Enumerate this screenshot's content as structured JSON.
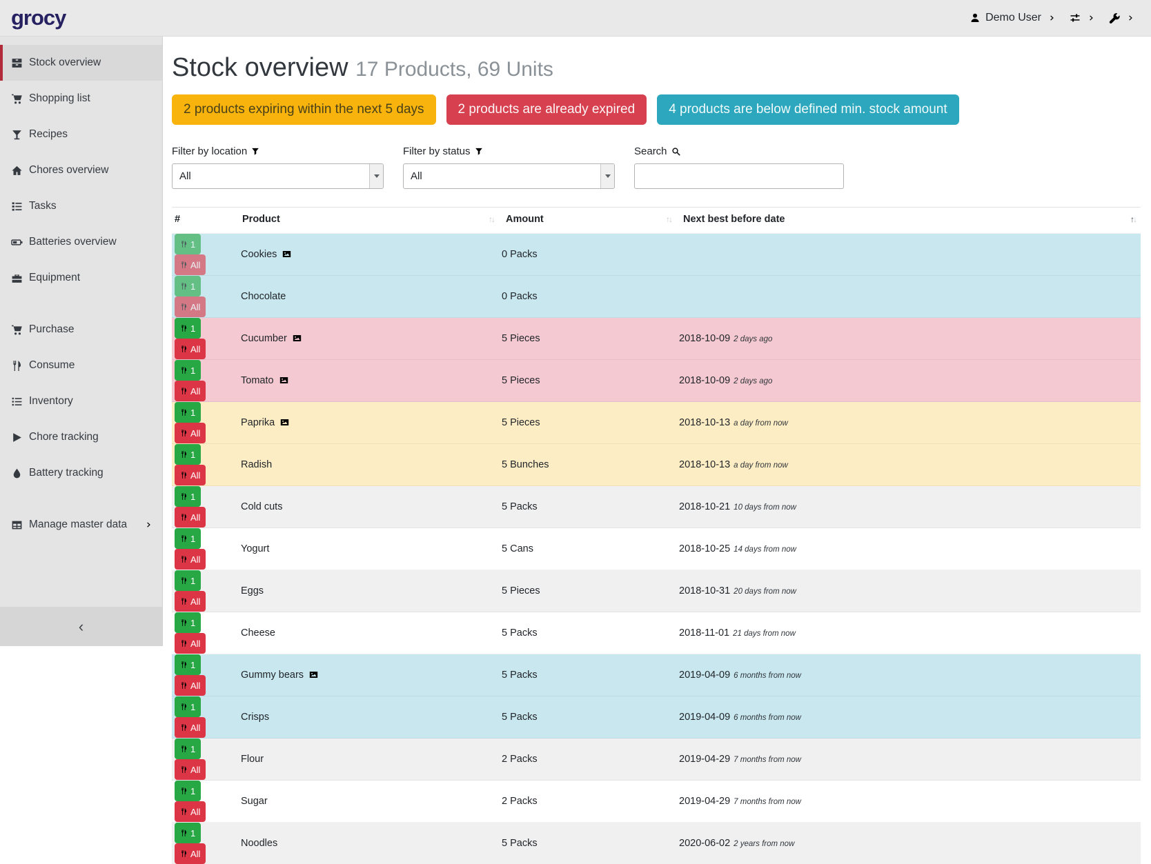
{
  "topbar": {
    "brand": "grocy",
    "user": "Demo User"
  },
  "sidebar": {
    "items": [
      {
        "label": "Stock overview",
        "icon": "stock",
        "active": true
      },
      {
        "label": "Shopping list",
        "icon": "cart"
      },
      {
        "label": "Recipes",
        "icon": "cocktail"
      },
      {
        "label": "Chores overview",
        "icon": "home"
      },
      {
        "label": "Tasks",
        "icon": "tasks"
      },
      {
        "label": "Batteries overview",
        "icon": "battery"
      },
      {
        "label": "Equipment",
        "icon": "toolbox"
      },
      {
        "label": "Purchase",
        "icon": "cart",
        "gap_before": true
      },
      {
        "label": "Consume",
        "icon": "utensils"
      },
      {
        "label": "Inventory",
        "icon": "list"
      },
      {
        "label": "Chore tracking",
        "icon": "play"
      },
      {
        "label": "Battery tracking",
        "icon": "tint"
      },
      {
        "label": "Manage master data",
        "icon": "table",
        "gap_before": true,
        "has_submenu": true
      }
    ],
    "collapse_label": "‹"
  },
  "header": {
    "title": "Stock overview",
    "subtitle": "17 Products, 69 Units"
  },
  "alerts": [
    {
      "label": "2 products expiring within the next 5 days",
      "type": "warning"
    },
    {
      "label": "2 products are already expired",
      "type": "danger"
    },
    {
      "label": "4 products are below defined min. stock amount",
      "type": "info"
    }
  ],
  "filters": {
    "location": {
      "label": "Filter by location",
      "value": "All"
    },
    "status": {
      "label": "Filter by status",
      "value": "All"
    },
    "search": {
      "label": "Search",
      "value": ""
    }
  },
  "table": {
    "columns": [
      {
        "label": "#"
      },
      {
        "label": "Product",
        "sortable": true
      },
      {
        "label": "Amount",
        "sortable": true
      },
      {
        "label": "Next best before date",
        "sortable": true,
        "sorted": "asc"
      }
    ],
    "row_buttons": {
      "consume_one": "1",
      "consume_all": "All"
    },
    "rows": [
      {
        "product": "Cookies",
        "has_image": true,
        "amount": "0 Packs",
        "date": "",
        "date_note": "",
        "status": "belowmin",
        "disabled": true
      },
      {
        "product": "Chocolate",
        "amount": "0 Packs",
        "date": "",
        "date_note": "",
        "status": "belowmin",
        "disabled": true
      },
      {
        "product": "Cucumber",
        "has_image": true,
        "amount": "5 Pieces",
        "date": "2018-10-09",
        "date_note": "2 days ago",
        "status": "expired"
      },
      {
        "product": "Tomato",
        "has_image": true,
        "amount": "5 Pieces",
        "date": "2018-10-09",
        "date_note": "2 days ago",
        "status": "expired"
      },
      {
        "product": "Paprika",
        "has_image": true,
        "amount": "5 Pieces",
        "date": "2018-10-13",
        "date_note": "a day from now",
        "status": "expiring"
      },
      {
        "product": "Radish",
        "amount": "5 Bunches",
        "date": "2018-10-13",
        "date_note": "a day from now",
        "status": "expiring"
      },
      {
        "product": "Cold cuts",
        "amount": "5 Packs",
        "date": "2018-10-21",
        "date_note": "10 days from now",
        "status": ""
      },
      {
        "product": "Yogurt",
        "amount": "5 Cans",
        "date": "2018-10-25",
        "date_note": "14 days from now",
        "status": ""
      },
      {
        "product": "Eggs",
        "amount": "5 Pieces",
        "date": "2018-10-31",
        "date_note": "20 days from now",
        "status": ""
      },
      {
        "product": "Cheese",
        "amount": "5 Packs",
        "date": "2018-11-01",
        "date_note": "21 days from now",
        "status": ""
      },
      {
        "product": "Gummy bears",
        "has_image": true,
        "amount": "5 Packs",
        "date": "2019-04-09",
        "date_note": "6 months from now",
        "status": "belowmin"
      },
      {
        "product": "Crisps",
        "amount": "5 Packs",
        "date": "2019-04-09",
        "date_note": "6 months from now",
        "status": "belowmin"
      },
      {
        "product": "Flour",
        "amount": "2 Packs",
        "date": "2019-04-29",
        "date_note": "7 months from now",
        "status": ""
      },
      {
        "product": "Sugar",
        "amount": "2 Packs",
        "date": "2019-04-29",
        "date_note": "7 months from now",
        "status": ""
      },
      {
        "product": "Noodles",
        "amount": "5 Packs",
        "date": "2020-06-02",
        "date_note": "2 years from now",
        "status": ""
      }
    ]
  },
  "colors": {
    "brand": "#262262",
    "active_border": "#b22b3b",
    "c_warning": "#f8b40c",
    "c_danger": "#d6404f",
    "c_info": "#2da7bd",
    "row_belowmin": "#c8e7ef",
    "row_expired": "#f4c9d2",
    "row_expiring": "#fdedc4",
    "btn_green": "#28a745",
    "btn_red": "#dc3545"
  }
}
